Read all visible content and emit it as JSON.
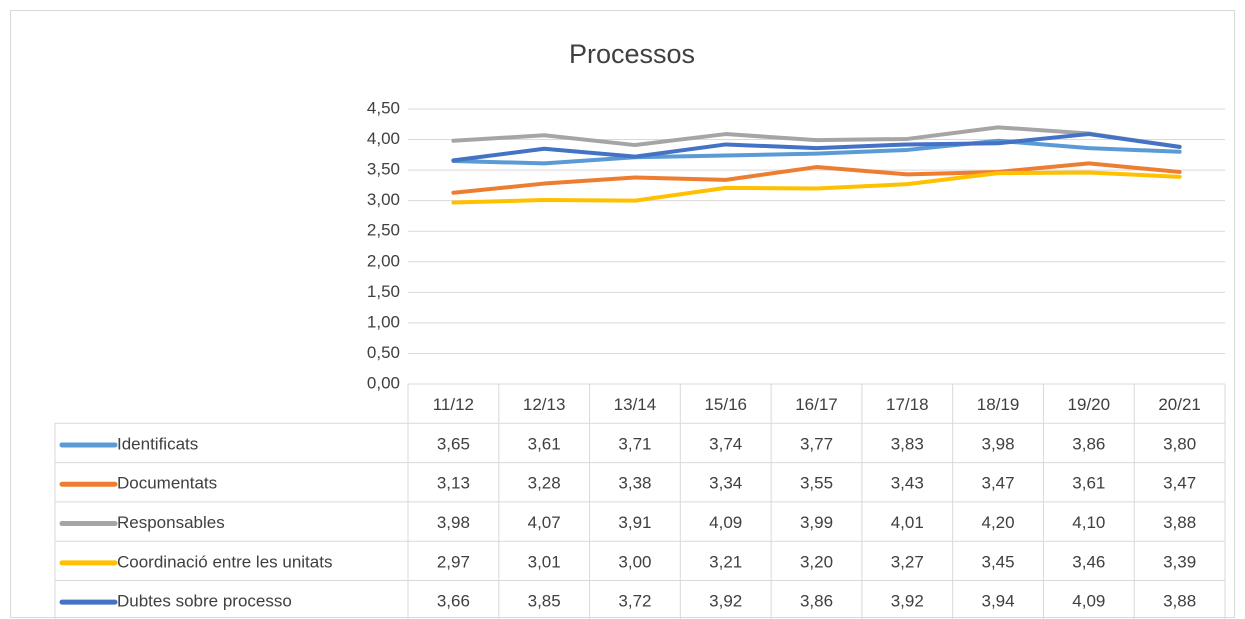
{
  "chart_data": {
    "type": "line",
    "title": "Processos",
    "categories": [
      "11/12",
      "12/13",
      "13/14",
      "15/16",
      "16/17",
      "17/18",
      "18/19",
      "19/20",
      "20/21"
    ],
    "series": [
      {
        "name": "Identificats",
        "color": "#5b9bd5",
        "values": [
          3.65,
          3.61,
          3.71,
          3.74,
          3.77,
          3.83,
          3.98,
          3.86,
          3.8
        ],
        "value_labels": [
          "3,65",
          "3,61",
          "3,71",
          "3,74",
          "3,77",
          "3,83",
          "3,98",
          "3,86",
          "3,80"
        ]
      },
      {
        "name": "Documentats",
        "color": "#ed7d31",
        "values": [
          3.13,
          3.28,
          3.38,
          3.34,
          3.55,
          3.43,
          3.47,
          3.61,
          3.47
        ],
        "value_labels": [
          "3,13",
          "3,28",
          "3,38",
          "3,34",
          "3,55",
          "3,43",
          "3,47",
          "3,61",
          "3,47"
        ]
      },
      {
        "name": "Responsables",
        "color": "#a5a5a5",
        "values": [
          3.98,
          4.07,
          3.91,
          4.09,
          3.99,
          4.01,
          4.2,
          4.1,
          3.88
        ],
        "value_labels": [
          "3,98",
          "4,07",
          "3,91",
          "4,09",
          "3,99",
          "4,01",
          "4,20",
          "4,10",
          "3,88"
        ]
      },
      {
        "name": "Coordinació entre les unitats",
        "color": "#ffc000",
        "values": [
          2.97,
          3.01,
          3.0,
          3.21,
          3.2,
          3.27,
          3.45,
          3.46,
          3.39
        ],
        "value_labels": [
          "2,97",
          "3,01",
          "3,00",
          "3,21",
          "3,20",
          "3,27",
          "3,45",
          "3,46",
          "3,39"
        ]
      },
      {
        "name": "Dubtes sobre processo",
        "color": "#4472c4",
        "values": [
          3.66,
          3.85,
          3.72,
          3.92,
          3.86,
          3.92,
          3.94,
          4.09,
          3.88
        ],
        "value_labels": [
          "3,66",
          "3,85",
          "3,72",
          "3,92",
          "3,86",
          "3,92",
          "3,94",
          "4,09",
          "3,88"
        ]
      }
    ],
    "ylim": [
      0,
      4.5
    ],
    "yticks": [
      {
        "value": 0,
        "label": "0,00"
      },
      {
        "value": 0.5,
        "label": "0,50"
      },
      {
        "value": 1,
        "label": "1,00"
      },
      {
        "value": 1.5,
        "label": "1,50"
      },
      {
        "value": 2,
        "label": "2,00"
      },
      {
        "value": 2.5,
        "label": "2,50"
      },
      {
        "value": 3,
        "label": "3,00"
      },
      {
        "value": 3.5,
        "label": "3,50"
      },
      {
        "value": 4,
        "label": "4,00"
      },
      {
        "value": 4.5,
        "label": "4,50"
      }
    ],
    "grid": true
  }
}
